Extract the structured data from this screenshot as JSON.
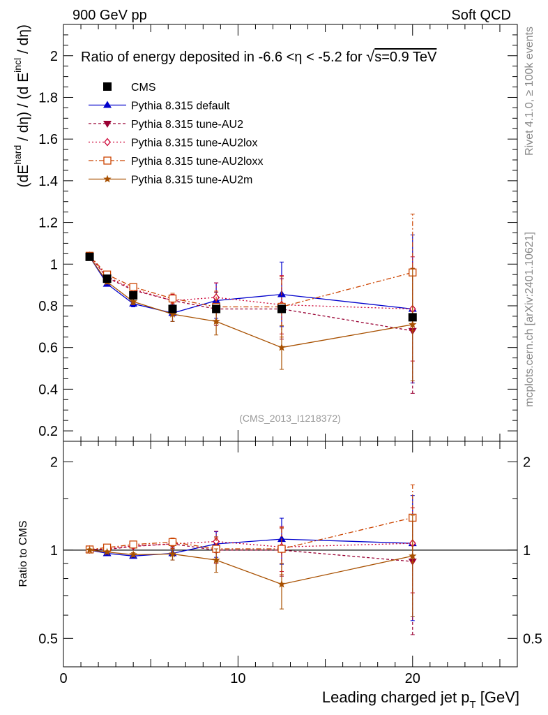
{
  "header": {
    "left": "900 GeV pp",
    "right": "Soft QCD"
  },
  "side_labels": {
    "rivet": "Rivet 4.1.0, ≥ 100k events",
    "mcplots": "mcplots.cern.ch [arXiv:2401.10621]"
  },
  "colors": {
    "CMS": "#000000",
    "default": "#0000cc",
    "AU2": "#990033",
    "AU2lox": "#cc0033",
    "AU2loxx": "#cc4400",
    "AU2m": "#a85000"
  },
  "chart_data": [
    {
      "type": "line",
      "panel": "main",
      "title": "Ratio of energy deposited in -6.6 <η < -5.2 for √s=0.9 TeV",
      "title_parts": {
        "pre": "Ratio of energy deposited in -6.6 <η < -5.2 for ",
        "sqrt": "√",
        "post": "s=0.9 TeV"
      },
      "ylabel": "(dE^hard / dη) / (d E^incl / dη)",
      "ylabel_parts": {
        "a": "(dE",
        "b": "hard",
        "c": " / dη) / (d E",
        "d": "incl",
        "e": " / dη)"
      },
      "watermark": "(CMS_2013_I1218372)",
      "xlim": [
        0,
        26
      ],
      "ylim": [
        0.15,
        2.15
      ],
      "y_ticks": [
        "0.2",
        "0.4",
        "0.6",
        "0.8",
        "1",
        "1.2",
        "1.4",
        "1.6",
        "1.8",
        "2"
      ],
      "x": [
        1.5,
        2.5,
        4,
        6.25,
        8.75,
        12.5,
        20
      ],
      "series": [
        {
          "key": "CMS",
          "name": "CMS",
          "marker": "square-filled",
          "dash": "none",
          "values": [
            1.035,
            0.93,
            0.85,
            0.785,
            0.785,
            0.785,
            0.745
          ],
          "err": [
            0,
            0,
            0,
            0,
            0,
            0,
            0
          ]
        },
        {
          "key": "default",
          "name": "Pythia 8.315 default",
          "marker": "triangle-up",
          "dash": "solid",
          "values": [
            1.035,
            0.905,
            0.81,
            0.765,
            0.825,
            0.855,
            0.785
          ],
          "err": [
            0.01,
            0.01,
            0.015,
            0.04,
            0.085,
            0.155,
            0.355
          ]
        },
        {
          "key": "AU2",
          "name": "Pythia 8.315 tune-AU2",
          "marker": "triangle-down",
          "dash": "4,3",
          "values": [
            1.04,
            0.935,
            0.875,
            0.825,
            0.785,
            0.785,
            0.68
          ],
          "err": [
            0.01,
            0.01,
            0.015,
            0.03,
            0.08,
            0.145,
            0.3
          ]
        },
        {
          "key": "AU2lox",
          "name": "Pythia 8.315 tune-AU2lox",
          "marker": "diamond-open",
          "dash": "2,3",
          "values": [
            1.04,
            0.94,
            0.88,
            0.825,
            0.84,
            0.805,
            0.785
          ],
          "err": [
            0.01,
            0.01,
            0.015,
            0.03,
            0.07,
            0.14,
            0.25
          ]
        },
        {
          "key": "AU2loxx",
          "name": "Pythia 8.315 tune-AU2loxx",
          "marker": "square-open",
          "dash": "7,3,2,3",
          "values": [
            1.04,
            0.95,
            0.89,
            0.835,
            0.795,
            0.795,
            0.96
          ],
          "err": [
            0.01,
            0.01,
            0.015,
            0.025,
            0.075,
            0.145,
            0.28
          ]
        },
        {
          "key": "AU2m",
          "name": "Pythia 8.315 tune-AU2m",
          "marker": "star",
          "dash": "solid",
          "values": [
            1.035,
            0.915,
            0.82,
            0.76,
            0.725,
            0.6,
            0.71
          ],
          "err": [
            0.01,
            0.01,
            0.015,
            0.035,
            0.065,
            0.105,
            0.27
          ]
        }
      ]
    },
    {
      "type": "line",
      "panel": "ratio",
      "ylabel": "Ratio to CMS",
      "xlabel": "Leading charged jet p_T [GeV]",
      "xlabel_parts": {
        "main": "Leading charged jet p",
        "sub": "T",
        "tail": " [GeV]"
      },
      "xlim": [
        0,
        26
      ],
      "ylim": [
        0.4,
        2.35
      ],
      "y_scale": "log",
      "y_ticks": [
        "0.5",
        "1",
        "2"
      ],
      "x_ticks": [
        "0",
        "10",
        "20"
      ],
      "x": [
        1.5,
        2.5,
        4,
        6.25,
        8.75,
        12.5,
        20
      ],
      "series": [
        {
          "key": "default",
          "values": [
            1.0,
            0.975,
            0.955,
            0.975,
            1.05,
            1.09,
            1.055
          ],
          "err": [
            0.01,
            0.01,
            0.015,
            0.05,
            0.105,
            0.195,
            0.48
          ]
        },
        {
          "key": "AU2",
          "values": [
            1.005,
            1.005,
            1.03,
            1.05,
            1.0,
            1.0,
            0.915
          ],
          "err": [
            0.01,
            0.01,
            0.015,
            0.04,
            0.1,
            0.185,
            0.4
          ]
        },
        {
          "key": "AU2lox",
          "values": [
            1.005,
            1.01,
            1.035,
            1.05,
            1.07,
            1.025,
            1.055
          ],
          "err": [
            0.01,
            0.01,
            0.015,
            0.04,
            0.09,
            0.18,
            0.34
          ]
        },
        {
          "key": "AU2loxx",
          "values": [
            1.005,
            1.02,
            1.045,
            1.065,
            1.01,
            1.01,
            1.29
          ],
          "err": [
            0.01,
            0.01,
            0.015,
            0.035,
            0.1,
            0.185,
            0.38
          ]
        },
        {
          "key": "AU2m",
          "values": [
            1.0,
            0.985,
            0.965,
            0.97,
            0.925,
            0.765,
            0.955
          ],
          "err": [
            0.01,
            0.01,
            0.015,
            0.045,
            0.085,
            0.135,
            0.36
          ]
        }
      ]
    }
  ]
}
